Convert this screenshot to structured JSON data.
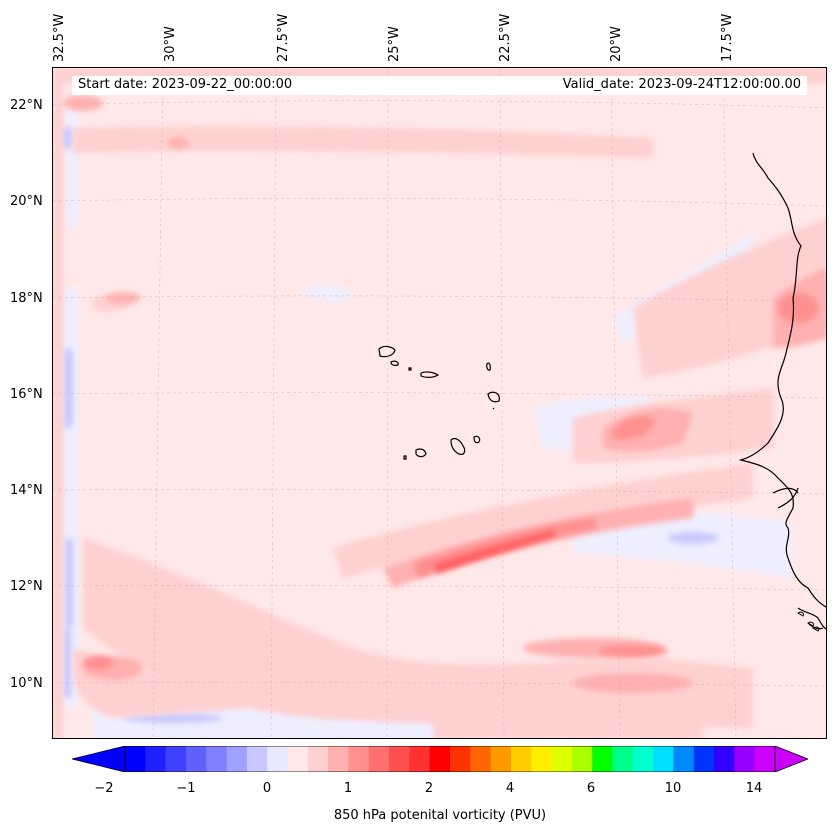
{
  "header": {
    "start_date": "Start date: 2023-09-22_00:00:00",
    "valid_date": "Valid_date: 2023-09-24T12:00:00.00"
  },
  "map": {
    "longitude_labels": [
      "32.5°W",
      "30°W",
      "27.5°W",
      "25°W",
      "22.5°W",
      "20°W",
      "17.5°W"
    ],
    "latitude_labels": [
      "22°N",
      "20°N",
      "18°N",
      "16°N",
      "14°N",
      "12°N",
      "10°N"
    ],
    "extent": {
      "lon_min": -33.0,
      "lon_max": -15.5,
      "lat_min": 9.0,
      "lat_max": 22.8
    }
  },
  "colorbar": {
    "ticks": [
      "−2",
      "−1",
      "0",
      "1",
      "2",
      "4",
      "6",
      "10",
      "14"
    ],
    "label": "850 hPa potenital vorticity (PVU)",
    "colors": [
      "#0000ff",
      "#2020ff",
      "#4040ff",
      "#6060ff",
      "#8080ff",
      "#a0a0ff",
      "#c8c8ff",
      "#e8e8ff",
      "#ffe8e8",
      "#ffd0d0",
      "#ffb0b0",
      "#ff9090",
      "#ff7070",
      "#ff5050",
      "#ff3030",
      "#ff0000",
      "#ff3300",
      "#ff6600",
      "#ff9900",
      "#ffcc00",
      "#ffee00",
      "#ddff00",
      "#aaff00",
      "#00ff00",
      "#00ff88",
      "#00ffcc",
      "#00ddff",
      "#0088ff",
      "#0033ff",
      "#3300ff",
      "#9900ff",
      "#cc00ff"
    ],
    "extend_min_color": "#0000ff",
    "extend_max_color": "#cc00ff"
  }
}
